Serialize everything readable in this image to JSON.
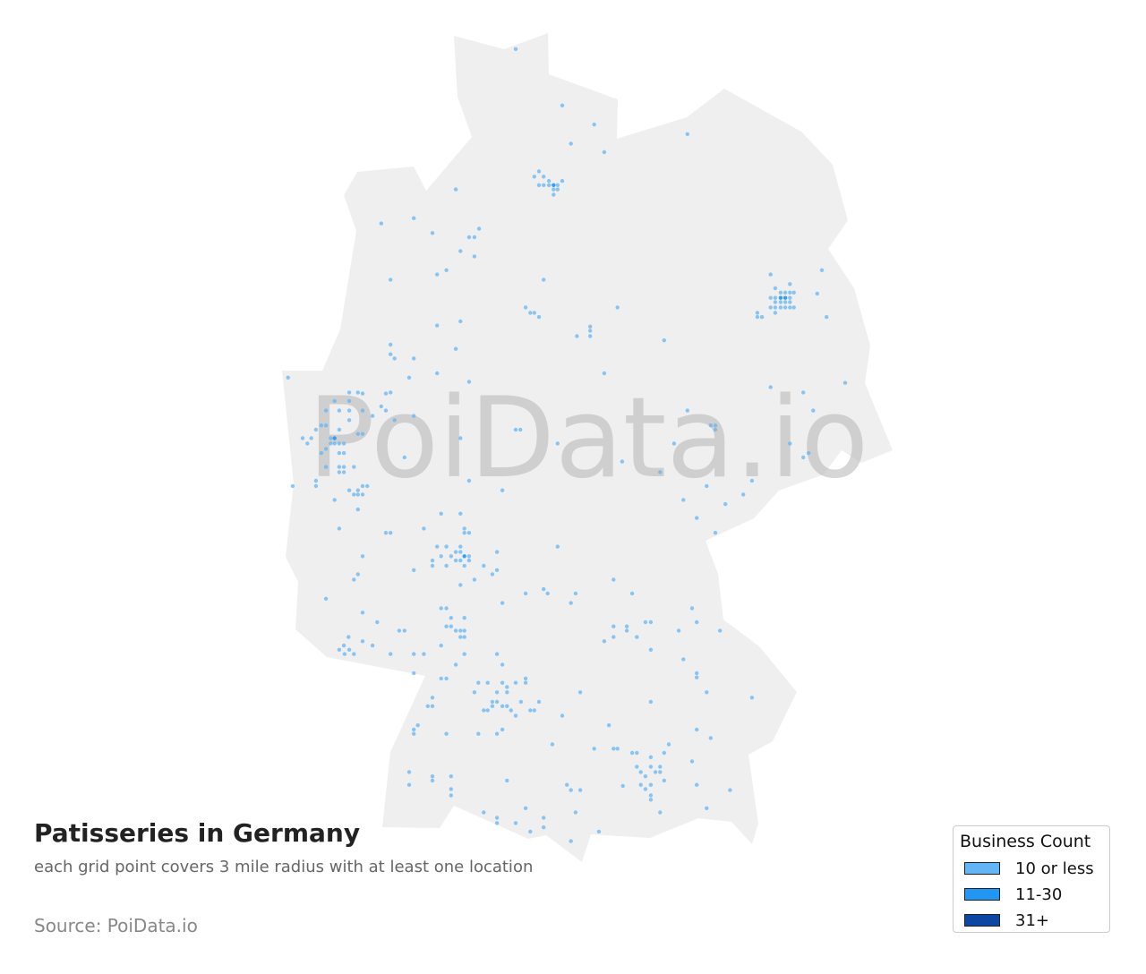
{
  "title": "Patisseries in Germany",
  "subtitle": "each grid point covers 3 mile radius with at least one location",
  "source": "Source: PoiData.io",
  "watermark": "PoiData.io",
  "colors": {
    "land": "#efefef",
    "level1": "#64b5f6",
    "level2": "#2196f3",
    "level3": "#0d47a1"
  },
  "legend": {
    "title": "Business Count",
    "items": [
      {
        "label": "10 or less",
        "color": "#64b5f6"
      },
      {
        "label": "11-30",
        "color": "#2196f3"
      },
      {
        "label": "31+",
        "color": "#0d47a1"
      }
    ]
  },
  "points_format": [
    "lon",
    "lat",
    "level"
  ],
  "points": [
    [
      9.38,
      54.91,
      1
    ],
    [
      10.08,
      54.38,
      1
    ],
    [
      10.56,
      54.2,
      1
    ],
    [
      10.21,
      54.02,
      1
    ],
    [
      10.71,
      53.94,
      1
    ],
    [
      11.96,
      54.11,
      1
    ],
    [
      9.73,
      53.76,
      1
    ],
    [
      9.8,
      53.71,
      1
    ],
    [
      9.66,
      53.71,
      1
    ],
    [
      9.73,
      53.63,
      1
    ],
    [
      9.8,
      53.63,
      1
    ],
    [
      9.88,
      53.63,
      1
    ],
    [
      9.95,
      53.63,
      2
    ],
    [
      10.01,
      53.63,
      1
    ],
    [
      10.08,
      53.67,
      1
    ],
    [
      9.95,
      53.59,
      1
    ],
    [
      10.01,
      53.59,
      1
    ],
    [
      9.95,
      53.54,
      1
    ],
    [
      9.88,
      53.67,
      1
    ],
    [
      8.48,
      53.59,
      1
    ],
    [
      7.36,
      53.27,
      1
    ],
    [
      7.85,
      53.32,
      1
    ],
    [
      8.13,
      53.18,
      1
    ],
    [
      8.68,
      53.14,
      1
    ],
    [
      8.76,
      53.14,
      1
    ],
    [
      8.83,
      53.22,
      1
    ],
    [
      8.55,
      53.01,
      1
    ],
    [
      8.76,
      52.96,
      1
    ],
    [
      8.34,
      52.83,
      1
    ],
    [
      8.2,
      52.79,
      1
    ],
    [
      7.5,
      52.74,
      1
    ],
    [
      9.8,
      52.74,
      1
    ],
    [
      9.53,
      52.48,
      1
    ],
    [
      9.6,
      52.43,
      1
    ],
    [
      9.66,
      52.43,
      1
    ],
    [
      9.73,
      52.39,
      1
    ],
    [
      10.91,
      52.48,
      1
    ],
    [
      10.5,
      52.3,
      1
    ],
    [
      10.5,
      52.26,
      1
    ],
    [
      10.5,
      52.21,
      1
    ],
    [
      10.3,
      52.21,
      1
    ],
    [
      11.61,
      52.17,
      1
    ],
    [
      8.55,
      52.35,
      1
    ],
    [
      8.2,
      52.31,
      1
    ],
    [
      7.5,
      52.13,
      1
    ],
    [
      7.5,
      52.04,
      1
    ],
    [
      7.56,
      52.0,
      1
    ],
    [
      7.85,
      52.0,
      1
    ],
    [
      8.48,
      52.09,
      1
    ],
    [
      8.2,
      51.86,
      1
    ],
    [
      7.78,
      51.82,
      1
    ],
    [
      8.68,
      51.78,
      1
    ],
    [
      10.71,
      51.86,
      1
    ],
    [
      13.21,
      52.79,
      1
    ],
    [
      13.28,
      52.66,
      1
    ],
    [
      13.5,
      52.7,
      1
    ],
    [
      13.5,
      52.62,
      1
    ],
    [
      13.56,
      52.62,
      1
    ],
    [
      13.36,
      52.62,
      1
    ],
    [
      13.43,
      52.62,
      1
    ],
    [
      13.21,
      52.57,
      1
    ],
    [
      13.28,
      52.57,
      1
    ],
    [
      13.36,
      52.57,
      2
    ],
    [
      13.43,
      52.57,
      2
    ],
    [
      13.5,
      52.57,
      1
    ],
    [
      13.28,
      52.53,
      1
    ],
    [
      13.36,
      52.53,
      1
    ],
    [
      13.43,
      52.53,
      1
    ],
    [
      13.5,
      52.53,
      1
    ],
    [
      13.21,
      52.48,
      1
    ],
    [
      13.28,
      52.48,
      1
    ],
    [
      13.36,
      52.48,
      1
    ],
    [
      13.43,
      52.48,
      1
    ],
    [
      13.5,
      52.48,
      1
    ],
    [
      13.56,
      52.48,
      1
    ],
    [
      13.01,
      52.43,
      1
    ],
    [
      13.08,
      52.39,
      1
    ],
    [
      13.28,
      52.43,
      1
    ],
    [
      13.01,
      52.39,
      1
    ],
    [
      13.98,
      52.83,
      1
    ],
    [
      13.91,
      52.61,
      1
    ],
    [
      14.05,
      52.39,
      1
    ],
    [
      13.21,
      51.73,
      1
    ],
    [
      13.7,
      51.68,
      1
    ],
    [
      14.33,
      51.77,
      1
    ],
    [
      13.85,
      51.51,
      1
    ],
    [
      11.96,
      51.51,
      1
    ],
    [
      12.31,
      51.37,
      1
    ],
    [
      12.38,
      51.37,
      1
    ],
    [
      12.38,
      51.33,
      1
    ],
    [
      11.76,
      51.2,
      1
    ],
    [
      13.5,
      51.2,
      1
    ],
    [
      13.78,
      51.11,
      1
    ],
    [
      13.7,
      51.07,
      1
    ],
    [
      11.55,
      50.93,
      1
    ],
    [
      10.98,
      51.03,
      1
    ],
    [
      12.25,
      50.8,
      1
    ],
    [
      12.93,
      50.85,
      1
    ],
    [
      12.8,
      50.72,
      1
    ],
    [
      11.9,
      50.67,
      1
    ],
    [
      12.53,
      50.63,
      1
    ],
    [
      12.1,
      50.5,
      1
    ],
    [
      12.38,
      50.36,
      1
    ],
    [
      5.96,
      51.82,
      1
    ],
    [
      6.88,
      51.68,
      1
    ],
    [
      7.01,
      51.68,
      1
    ],
    [
      7.08,
      51.67,
      1
    ],
    [
      6.66,
      51.6,
      1
    ],
    [
      6.88,
      51.6,
      1
    ],
    [
      7.43,
      51.67,
      1
    ],
    [
      7.5,
      51.68,
      1
    ],
    [
      7.36,
      51.55,
      1
    ],
    [
      7.43,
      51.51,
      1
    ],
    [
      7.85,
      51.46,
      1
    ],
    [
      6.53,
      51.51,
      1
    ],
    [
      6.73,
      51.51,
      1
    ],
    [
      6.88,
      51.51,
      1
    ],
    [
      7.08,
      51.51,
      1
    ],
    [
      7.23,
      51.46,
      1
    ],
    [
      7.56,
      51.42,
      1
    ],
    [
      6.46,
      51.37,
      1
    ],
    [
      6.53,
      51.37,
      1
    ],
    [
      6.73,
      51.33,
      1
    ],
    [
      6.88,
      51.42,
      1
    ],
    [
      7.01,
      51.29,
      1
    ],
    [
      7.08,
      51.29,
      1
    ],
    [
      6.18,
      51.25,
      1
    ],
    [
      6.31,
      51.25,
      1
    ],
    [
      6.25,
      51.2,
      1
    ],
    [
      6.6,
      51.25,
      1
    ],
    [
      6.66,
      51.25,
      2
    ],
    [
      6.6,
      51.2,
      1
    ],
    [
      6.66,
      51.2,
      1
    ],
    [
      6.73,
      51.2,
      1
    ],
    [
      6.8,
      51.2,
      1
    ],
    [
      6.38,
      51.33,
      1
    ],
    [
      6.53,
      51.15,
      1
    ],
    [
      6.73,
      51.11,
      1
    ],
    [
      6.8,
      51.11,
      1
    ],
    [
      6.46,
      51.11,
      1
    ],
    [
      6.53,
      50.98,
      1
    ],
    [
      6.73,
      50.98,
      1
    ],
    [
      6.8,
      50.98,
      1
    ],
    [
      6.95,
      50.98,
      1
    ],
    [
      6.73,
      50.93,
      1
    ],
    [
      6.8,
      50.93,
      1
    ],
    [
      6.38,
      50.85,
      1
    ],
    [
      6.38,
      50.8,
      1
    ],
    [
      6.03,
      50.8,
      1
    ],
    [
      6.88,
      50.76,
      1
    ],
    [
      6.95,
      50.72,
      1
    ],
    [
      7.01,
      50.76,
      1
    ],
    [
      7.08,
      50.8,
      1
    ],
    [
      7.15,
      50.8,
      1
    ],
    [
      7.01,
      50.72,
      1
    ],
    [
      7.08,
      50.72,
      1
    ],
    [
      6.66,
      50.67,
      1
    ],
    [
      7.01,
      50.58,
      1
    ],
    [
      6.73,
      50.4,
      1
    ],
    [
      7.71,
      51.07,
      1
    ],
    [
      8.55,
      51.25,
      1
    ],
    [
      9.38,
      51.33,
      1
    ],
    [
      9.45,
      51.33,
      1
    ],
    [
      10.01,
      51.2,
      1
    ],
    [
      8.68,
      50.85,
      1
    ],
    [
      9.18,
      50.76,
      1
    ],
    [
      8.26,
      50.54,
      1
    ],
    [
      8.55,
      50.54,
      1
    ],
    [
      8.61,
      50.4,
      1
    ],
    [
      8.61,
      50.36,
      1
    ],
    [
      8.68,
      50.36,
      1
    ],
    [
      8.0,
      50.4,
      1
    ],
    [
      7.43,
      50.36,
      1
    ],
    [
      7.5,
      50.36,
      1
    ],
    [
      8.2,
      50.23,
      1
    ],
    [
      8.34,
      50.23,
      1
    ],
    [
      8.48,
      50.18,
      1
    ],
    [
      8.55,
      50.23,
      1
    ],
    [
      8.41,
      50.14,
      1
    ],
    [
      8.55,
      50.18,
      1
    ],
    [
      8.61,
      50.14,
      2
    ],
    [
      8.68,
      50.14,
      1
    ],
    [
      8.26,
      50.14,
      1
    ],
    [
      8.13,
      50.1,
      1
    ],
    [
      8.13,
      50.05,
      1
    ],
    [
      8.34,
      50.05,
      1
    ],
    [
      8.48,
      50.1,
      1
    ],
    [
      8.55,
      50.1,
      1
    ],
    [
      8.68,
      50.1,
      1
    ],
    [
      8.61,
      50.05,
      1
    ],
    [
      8.9,
      50.05,
      1
    ],
    [
      9.1,
      50.18,
      1
    ],
    [
      9.1,
      50.01,
      1
    ],
    [
      9.03,
      49.97,
      1
    ],
    [
      8.76,
      49.92,
      1
    ],
    [
      8.55,
      49.87,
      1
    ],
    [
      7.85,
      50.01,
      1
    ],
    [
      7.08,
      50.14,
      1
    ],
    [
      7.01,
      49.97,
      1
    ],
    [
      6.95,
      49.92,
      1
    ],
    [
      10.01,
      50.23,
      1
    ],
    [
      10.85,
      49.92,
      1
    ],
    [
      11.13,
      49.79,
      1
    ],
    [
      9.8,
      49.83,
      1
    ],
    [
      9.86,
      49.79,
      1
    ],
    [
      9.53,
      49.79,
      1
    ],
    [
      10.28,
      49.79,
      1
    ],
    [
      10.21,
      49.7,
      1
    ],
    [
      9.18,
      49.7,
      1
    ],
    [
      6.53,
      49.74,
      1
    ],
    [
      7.08,
      49.61,
      1
    ],
    [
      7.3,
      49.52,
      1
    ],
    [
      7.63,
      49.44,
      1
    ],
    [
      7.71,
      49.44,
      1
    ],
    [
      8.26,
      49.65,
      1
    ],
    [
      8.34,
      49.65,
      1
    ],
    [
      8.41,
      49.56,
      1
    ],
    [
      8.61,
      49.56,
      1
    ],
    [
      8.34,
      49.48,
      1
    ],
    [
      8.41,
      49.48,
      1
    ],
    [
      8.48,
      49.44,
      1
    ],
    [
      8.55,
      49.44,
      1
    ],
    [
      8.61,
      49.44,
      1
    ],
    [
      8.55,
      49.38,
      1
    ],
    [
      8.61,
      49.38,
      1
    ],
    [
      8.26,
      49.3,
      1
    ],
    [
      8.48,
      49.12,
      1
    ],
    [
      8.61,
      49.22,
      1
    ],
    [
      6.87,
      49.38,
      1
    ],
    [
      7.08,
      49.34,
      1
    ],
    [
      7.23,
      49.3,
      1
    ],
    [
      6.8,
      49.3,
      1
    ],
    [
      6.73,
      49.26,
      1
    ],
    [
      6.88,
      49.26,
      1
    ],
    [
      6.95,
      49.22,
      1
    ],
    [
      6.81,
      49.22,
      1
    ],
    [
      7.5,
      49.22,
      1
    ],
    [
      7.85,
      49.22,
      1
    ],
    [
      8.0,
      49.22,
      1
    ],
    [
      7.85,
      49.04,
      1
    ],
    [
      10.85,
      49.48,
      1
    ],
    [
      11.05,
      49.48,
      1
    ],
    [
      10.85,
      49.38,
      1
    ],
    [
      10.71,
      49.34,
      1
    ],
    [
      11.05,
      49.44,
      1
    ],
    [
      11.2,
      49.38,
      1
    ],
    [
      11.33,
      49.52,
      1
    ],
    [
      11.41,
      49.52,
      1
    ],
    [
      11.41,
      49.26,
      1
    ],
    [
      11.83,
      49.44,
      1
    ],
    [
      12.03,
      49.65,
      1
    ],
    [
      12.1,
      49.52,
      1
    ],
    [
      12.45,
      49.44,
      1
    ],
    [
      11.9,
      49.17,
      1
    ],
    [
      12.1,
      49.04,
      1
    ],
    [
      12.1,
      49.0,
      1
    ],
    [
      12.25,
      48.86,
      1
    ],
    [
      12.93,
      48.81,
      1
    ],
    [
      8.26,
      48.99,
      1
    ],
    [
      8.34,
      48.99,
      1
    ],
    [
      9.1,
      49.22,
      1
    ],
    [
      9.18,
      49.12,
      1
    ],
    [
      8.82,
      48.95,
      1
    ],
    [
      8.96,
      48.95,
      1
    ],
    [
      9.18,
      48.95,
      1
    ],
    [
      9.25,
      48.91,
      1
    ],
    [
      9.38,
      48.95,
      1
    ],
    [
      9.53,
      48.99,
      1
    ],
    [
      9.53,
      48.95,
      1
    ],
    [
      8.76,
      48.86,
      1
    ],
    [
      9.1,
      48.86,
      1
    ],
    [
      9.25,
      48.86,
      1
    ],
    [
      8.13,
      48.81,
      1
    ],
    [
      8.06,
      48.73,
      1
    ],
    [
      8.13,
      48.73,
      1
    ],
    [
      9.03,
      48.77,
      1
    ],
    [
      9.1,
      48.77,
      1
    ],
    [
      9.18,
      48.73,
      1
    ],
    [
      9.46,
      48.77,
      1
    ],
    [
      8.9,
      48.69,
      1
    ],
    [
      8.96,
      48.69,
      1
    ],
    [
      9.03,
      48.73,
      1
    ],
    [
      9.25,
      48.73,
      1
    ],
    [
      9.31,
      48.69,
      1
    ],
    [
      9.38,
      48.64,
      1
    ],
    [
      9.6,
      48.69,
      1
    ],
    [
      9.66,
      48.69,
      1
    ],
    [
      9.73,
      48.77,
      1
    ],
    [
      10.08,
      48.64,
      1
    ],
    [
      10.35,
      48.86,
      1
    ],
    [
      11.41,
      48.77,
      1
    ],
    [
      7.91,
      48.55,
      1
    ],
    [
      7.85,
      48.51,
      1
    ],
    [
      7.85,
      48.47,
      1
    ],
    [
      8.34,
      48.47,
      1
    ],
    [
      8.82,
      48.47,
      1
    ],
    [
      9.18,
      48.51,
      1
    ],
    [
      9.1,
      48.47,
      1
    ],
    [
      9.93,
      48.37,
      1
    ],
    [
      10.56,
      48.33,
      1
    ],
    [
      10.85,
      48.33,
      1
    ],
    [
      10.91,
      48.33,
      1
    ],
    [
      10.78,
      48.55,
      1
    ],
    [
      11.13,
      48.29,
      1
    ],
    [
      11.2,
      48.29,
      1
    ],
    [
      11.68,
      48.37,
      1
    ],
    [
      11.61,
      48.29,
      1
    ],
    [
      11.41,
      48.25,
      1
    ],
    [
      11.2,
      48.16,
      1
    ],
    [
      11.26,
      48.11,
      1
    ],
    [
      11.41,
      48.16,
      1
    ],
    [
      11.48,
      48.11,
      1
    ],
    [
      11.55,
      48.16,
      1
    ],
    [
      11.55,
      48.11,
      1
    ],
    [
      11.61,
      48.03,
      1
    ],
    [
      11.33,
      48.07,
      1
    ],
    [
      11.41,
      47.99,
      1
    ],
    [
      11.33,
      47.95,
      1
    ],
    [
      11.41,
      47.89,
      1
    ],
    [
      11.41,
      47.85,
      1
    ],
    [
      11.26,
      47.99,
      1
    ],
    [
      10.99,
      47.98,
      1
    ],
    [
      12.1,
      48.51,
      1
    ],
    [
      12.31,
      48.43,
      1
    ],
    [
      12.03,
      48.21,
      1
    ],
    [
      12.1,
      47.99,
      1
    ],
    [
      12.6,
      47.94,
      1
    ],
    [
      12.25,
      47.77,
      1
    ],
    [
      11.55,
      47.73,
      1
    ],
    [
      7.78,
      48.11,
      1
    ],
    [
      8.13,
      48.07,
      1
    ],
    [
      8.13,
      48.03,
      1
    ],
    [
      8.41,
      48.07,
      1
    ],
    [
      7.78,
      47.99,
      1
    ],
    [
      8.41,
      47.95,
      1
    ],
    [
      8.41,
      47.89,
      1
    ],
    [
      9.25,
      48.03,
      1
    ],
    [
      10.15,
      47.99,
      1
    ],
    [
      10.21,
      47.94,
      1
    ],
    [
      10.35,
      47.94,
      1
    ],
    [
      8.9,
      47.73,
      1
    ],
    [
      9.1,
      47.68,
      1
    ],
    [
      9.1,
      47.63,
      1
    ],
    [
      9.38,
      47.63,
      1
    ],
    [
      9.53,
      47.77,
      1
    ],
    [
      9.8,
      47.68,
      1
    ],
    [
      9.8,
      47.59,
      1
    ],
    [
      9.6,
      47.55,
      1
    ],
    [
      10.28,
      47.73,
      1
    ],
    [
      10.21,
      47.46,
      1
    ],
    [
      10.63,
      47.55,
      1
    ]
  ]
}
